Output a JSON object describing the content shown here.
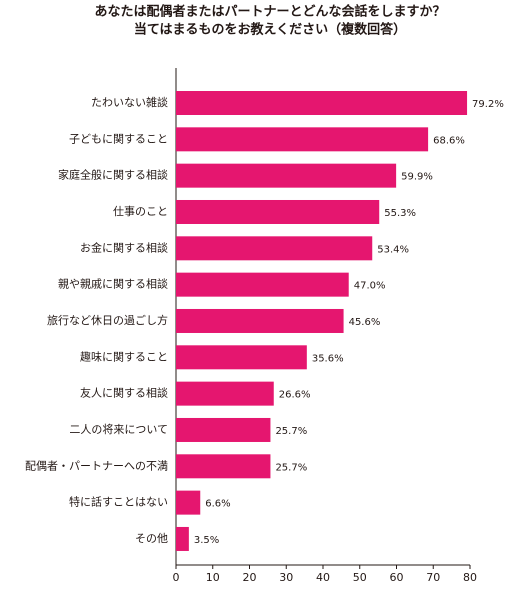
{
  "chart_data": {
    "type": "bar",
    "orientation": "horizontal",
    "title": "あなたは配偶者またはパートナーとどんな会話をしますか？",
    "subtitle": "当てはまるものをお教えください（複数回答）",
    "categories": [
      "たわいない雑談",
      "子どもに関すること",
      "家庭全般に関する相談",
      "仕事のこと",
      "お金に関する相談",
      "親や親戚に関する相談",
      "旅行など休日の過ごし方",
      "趣味に関すること",
      "友人に関する相談",
      "二人の将来について",
      "配偶者・パートナーへの不満",
      "特に話すことはない",
      "その他"
    ],
    "values": [
      79.2,
      68.6,
      59.9,
      55.3,
      53.4,
      47.0,
      45.6,
      35.6,
      26.6,
      25.7,
      25.7,
      6.6,
      3.5
    ],
    "value_labels": [
      "79.2%",
      "68.6%",
      "59.9%",
      "55.3%",
      "53.4%",
      "47.0%",
      "45.6%",
      "35.6%",
      "26.6%",
      "25.7%",
      "25.7%",
      "6.6%",
      "3.5%"
    ],
    "color": "#e5166f",
    "xlim": [
      0,
      80
    ],
    "xticks": [
      0,
      10,
      20,
      30,
      40,
      50,
      60,
      70,
      80
    ],
    "grid": false
  }
}
